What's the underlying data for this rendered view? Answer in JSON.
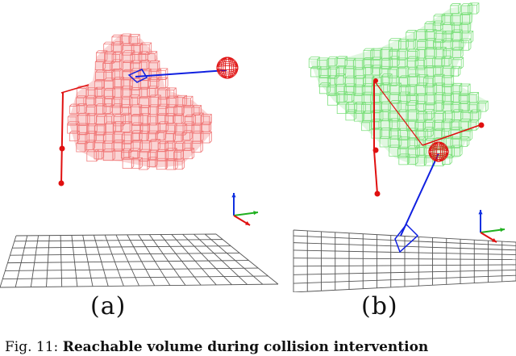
{
  "figure": {
    "panels": [
      {
        "id": "a",
        "label": "(a)",
        "volume_color": "#f07a7a",
        "volume_fill": "#f6b0b0"
      },
      {
        "id": "b",
        "label": "(b)",
        "volume_color": "#7ee07e",
        "volume_fill": "#c8f0c8"
      }
    ],
    "caption": {
      "fig_label": "Fig. 11:",
      "text": "Reachable volume during collision intervention"
    },
    "colors": {
      "arm": "#e01010",
      "link": "#1020e0",
      "grid": "#555555",
      "axis_x": "#e01010",
      "axis_y": "#20b020",
      "axis_z": "#1030e0"
    }
  }
}
